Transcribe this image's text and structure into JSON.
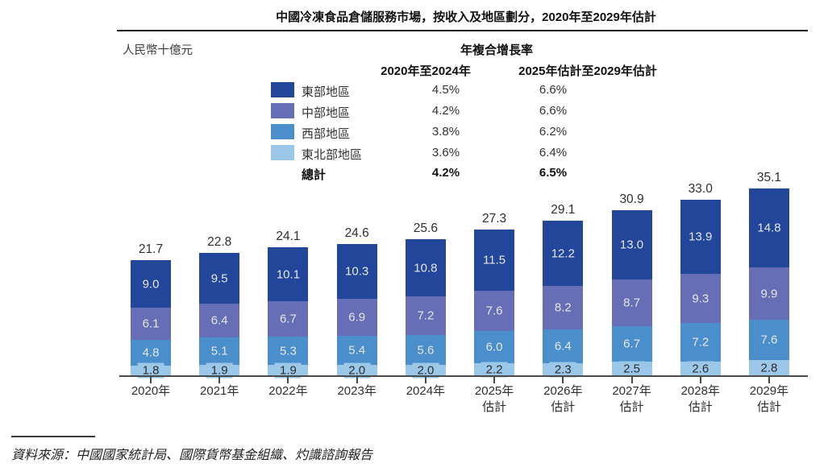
{
  "title": "中國冷凍食品倉儲服務市場，按收入及地區劃分，2020年至2029年估計",
  "unit_label": "人民幣十億元",
  "cagr_table": {
    "header": "年複合增長率",
    "col1_header": "2020年至2024年",
    "col2_header": "2025年估計至2029年估計",
    "rows": [
      {
        "label": "東部地區",
        "color": "#22479A",
        "v1": "4.5%",
        "v2": "6.6%"
      },
      {
        "label": "中部地區",
        "color": "#666FB6",
        "v1": "4.2%",
        "v2": "6.6%"
      },
      {
        "label": "西部地區",
        "color": "#4A8FCC",
        "v1": "3.8%",
        "v2": "6.2%"
      },
      {
        "label": "東北部地區",
        "color": "#9BC7E9",
        "v1": "3.6%",
        "v2": "6.4%"
      }
    ],
    "total_row": {
      "label": "總計",
      "v1": "4.2%",
      "v2": "6.5%"
    }
  },
  "chart_data": {
    "type": "bar",
    "stacked": true,
    "title": "中國冷凍食品倉儲服務市場，按收入及地區劃分，2020年至2029年估計",
    "ylabel": "人民幣十億元",
    "grid": false,
    "legend_position": "top-left",
    "categories": [
      {
        "label": "2020年",
        "sublabel": ""
      },
      {
        "label": "2021年",
        "sublabel": ""
      },
      {
        "label": "2022年",
        "sublabel": ""
      },
      {
        "label": "2023年",
        "sublabel": ""
      },
      {
        "label": "2024年",
        "sublabel": ""
      },
      {
        "label": "2025年",
        "sublabel": "估計"
      },
      {
        "label": "2026年",
        "sublabel": "估計"
      },
      {
        "label": "2027年",
        "sublabel": "估計"
      },
      {
        "label": "2028年",
        "sublabel": "估計"
      },
      {
        "label": "2029年",
        "sublabel": "估計"
      }
    ],
    "series": [
      {
        "name": "東部地區",
        "color": "#22479A",
        "values": [
          9.0,
          9.5,
          10.1,
          10.3,
          10.8,
          11.5,
          12.2,
          13.0,
          13.9,
          14.8
        ]
      },
      {
        "name": "中部地區",
        "color": "#666FB6",
        "values": [
          6.1,
          6.4,
          6.7,
          6.9,
          7.2,
          7.6,
          8.2,
          8.7,
          9.3,
          9.9
        ]
      },
      {
        "name": "西部地區",
        "color": "#4A8FCC",
        "values": [
          4.8,
          5.1,
          5.3,
          5.4,
          5.6,
          6.0,
          6.4,
          6.7,
          7.2,
          7.6
        ]
      },
      {
        "name": "東北部地區",
        "color": "#9BC7E9",
        "values": [
          1.8,
          1.9,
          1.9,
          2.0,
          2.0,
          2.2,
          2.3,
          2.5,
          2.6,
          2.8
        ]
      }
    ],
    "totals": [
      21.7,
      22.8,
      24.1,
      24.6,
      25.6,
      27.3,
      29.1,
      30.9,
      33.0,
      35.1
    ],
    "ylim": [
      0,
      38
    ]
  },
  "source": "資料來源：中國國家統計局、國際貨幣基金組織、灼識諮詢報告"
}
